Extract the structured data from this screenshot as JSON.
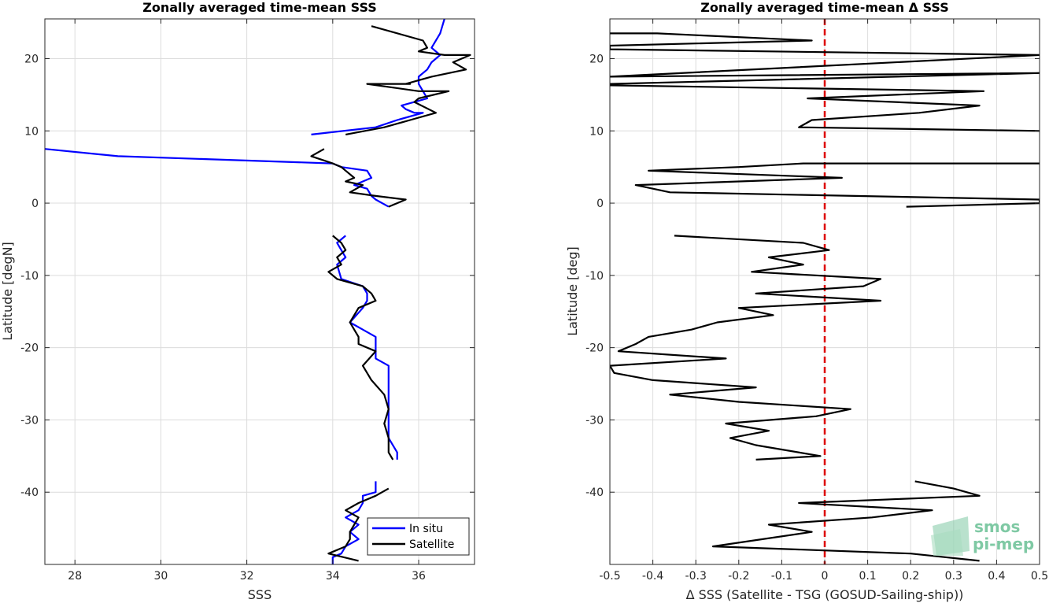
{
  "chart_data": [
    {
      "type": "line",
      "title": "Zonally averaged time-mean SSS",
      "xlabel": "SSS",
      "ylabel": "Latitude [degN]",
      "xlim": [
        27.3,
        37.3
      ],
      "ylim": [
        -50,
        25.5
      ],
      "xticks": [
        28,
        30,
        32,
        34,
        36
      ],
      "yticks": [
        20,
        10,
        0,
        -10,
        -20,
        -30,
        -40
      ],
      "grid": true,
      "legend": "bottom-right",
      "series": [
        {
          "name": "In situ",
          "color": "#0000ff",
          "segments": [
            [
              [
                36.6,
                25.5
              ],
              [
                36.5,
                23.5
              ],
              [
                36.3,
                21.5
              ],
              [
                36.5,
                20.5
              ],
              [
                36.3,
                19.5
              ],
              [
                36.2,
                18.5
              ],
              [
                36.0,
                17.5
              ],
              [
                36.0,
                16.5
              ],
              [
                36.1,
                15.5
              ],
              [
                36.2,
                14.5
              ],
              [
                35.6,
                13.5
              ],
              [
                35.7,
                13.0
              ],
              [
                35.9,
                12.5
              ],
              [
                36.1,
                12.5
              ],
              [
                35.5,
                11.5
              ],
              [
                35.0,
                10.5
              ],
              [
                33.5,
                9.5
              ]
            ],
            [
              [
                27.3,
                7.5
              ],
              [
                29.0,
                6.5
              ],
              [
                34.0,
                5.5
              ],
              [
                34.2,
                5.0
              ],
              [
                34.8,
                4.5
              ],
              [
                34.9,
                3.5
              ],
              [
                34.5,
                2.5
              ],
              [
                34.8,
                2.0
              ],
              [
                34.9,
                1.0
              ],
              [
                35.0,
                0.5
              ],
              [
                35.3,
                -0.5
              ]
            ],
            [
              [
                34.3,
                -4.5
              ],
              [
                34.1,
                -5.5
              ],
              [
                34.2,
                -6.5
              ],
              [
                34.3,
                -7.5
              ],
              [
                34.1,
                -8.5
              ],
              [
                34.2,
                -10.5
              ],
              [
                34.7,
                -11.5
              ],
              [
                34.8,
                -12.5
              ],
              [
                34.8,
                -13.5
              ],
              [
                34.7,
                -14.5
              ],
              [
                34.4,
                -16.5
              ],
              [
                34.7,
                -17.5
              ],
              [
                35.0,
                -18.5
              ],
              [
                35.0,
                -19.5
              ],
              [
                35.0,
                -20.5
              ],
              [
                35.0,
                -21.5
              ],
              [
                35.3,
                -22.5
              ],
              [
                35.3,
                -24.5
              ],
              [
                35.3,
                -26.5
              ],
              [
                35.3,
                -28.5
              ],
              [
                35.3,
                -30.5
              ],
              [
                35.3,
                -32.5
              ],
              [
                35.5,
                -34.5
              ],
              [
                35.5,
                -35.5
              ]
            ],
            [
              [
                35.0,
                -38.5
              ],
              [
                35.0,
                -40.0
              ],
              [
                34.7,
                -40.5
              ],
              [
                34.7,
                -41.5
              ],
              [
                34.6,
                -42.5
              ],
              [
                34.3,
                -43.5
              ],
              [
                34.6,
                -44.5
              ],
              [
                34.4,
                -45.5
              ],
              [
                34.6,
                -46.5
              ],
              [
                34.3,
                -47.5
              ],
              [
                34.2,
                -48.5
              ],
              [
                34.0,
                -49.0
              ],
              [
                34.0,
                -50.0
              ]
            ]
          ]
        },
        {
          "name": "Satellite",
          "color": "#000000",
          "segments": [
            [
              [
                34.9,
                24.5
              ],
              [
                36.1,
                22.5
              ],
              [
                36.2,
                21.5
              ],
              [
                36.0,
                21.0
              ],
              [
                36.6,
                20.5
              ],
              [
                37.2,
                20.5
              ],
              [
                36.8,
                19.5
              ],
              [
                37.1,
                18.5
              ],
              [
                36.3,
                17.5
              ],
              [
                35.7,
                16.5
              ],
              [
                35.8,
                16.5
              ],
              [
                34.8,
                16.5
              ],
              [
                36.0,
                15.5
              ],
              [
                36.7,
                15.5
              ],
              [
                36.0,
                14.5
              ],
              [
                35.9,
                14.0
              ],
              [
                36.4,
                12.5
              ],
              [
                35.8,
                11.5
              ],
              [
                35.2,
                10.5
              ],
              [
                34.3,
                9.5
              ]
            ],
            [
              [
                33.8,
                7.5
              ],
              [
                33.5,
                6.5
              ],
              [
                34.0,
                5.5
              ],
              [
                34.2,
                5.0
              ],
              [
                34.3,
                4.5
              ],
              [
                34.5,
                3.5
              ],
              [
                34.3,
                3.0
              ],
              [
                34.7,
                2.5
              ],
              [
                34.4,
                1.5
              ],
              [
                35.0,
                1.0
              ],
              [
                35.7,
                0.5
              ],
              [
                35.3,
                -0.5
              ]
            ],
            [
              [
                34.0,
                -4.5
              ],
              [
                34.2,
                -5.5
              ],
              [
                34.3,
                -6.5
              ],
              [
                34.1,
                -7.5
              ],
              [
                34.2,
                -8.5
              ],
              [
                33.9,
                -9.5
              ],
              [
                34.1,
                -10.5
              ],
              [
                34.7,
                -11.5
              ],
              [
                34.9,
                -12.5
              ],
              [
                35.0,
                -13.5
              ],
              [
                34.6,
                -14.5
              ],
              [
                34.4,
                -16.5
              ],
              [
                34.5,
                -17.5
              ],
              [
                34.6,
                -18.5
              ],
              [
                34.6,
                -19.5
              ],
              [
                35.0,
                -20.5
              ],
              [
                34.7,
                -22.5
              ],
              [
                34.9,
                -24.5
              ],
              [
                35.2,
                -26.5
              ],
              [
                35.3,
                -28.5
              ],
              [
                35.2,
                -30.5
              ],
              [
                35.3,
                -32.5
              ],
              [
                35.3,
                -34.5
              ],
              [
                35.4,
                -35.5
              ]
            ],
            [
              [
                35.3,
                -39.5
              ],
              [
                35.0,
                -40.5
              ],
              [
                34.6,
                -41.5
              ],
              [
                34.3,
                -42.5
              ],
              [
                34.6,
                -43.5
              ],
              [
                34.5,
                -44.5
              ],
              [
                34.4,
                -45.5
              ],
              [
                34.4,
                -46.5
              ],
              [
                34.3,
                -47.5
              ],
              [
                33.9,
                -48.5
              ],
              [
                34.6,
                -49.5
              ]
            ]
          ]
        }
      ]
    },
    {
      "type": "line",
      "title": "Zonally averaged time-mean Δ SSS",
      "xlabel": "Δ SSS (Satellite - TSG (GOSUD-Sailing-ship))",
      "ylabel": "Latitude [deg]",
      "xlim": [
        -0.5,
        0.5
      ],
      "ylim": [
        -50,
        25.5
      ],
      "xticks": [
        -0.5,
        -0.4,
        -0.3,
        -0.2,
        -0.1,
        0,
        0.1,
        0.2,
        0.3,
        0.4,
        0.5
      ],
      "yticks": [
        20,
        10,
        0,
        -10,
        -20,
        -30,
        -40
      ],
      "grid": true,
      "reference_line": {
        "x": 0,
        "color": "#dd0000",
        "style": "dashed"
      },
      "series": [
        {
          "name": "",
          "color": "#000000",
          "segments": [
            [
              [
                -0.5,
                23.5
              ],
              [
                -0.39,
                23.5
              ],
              [
                -0.03,
                22.5
              ],
              [
                -0.5,
                21.8
              ],
              [
                -0.5,
                21.3
              ],
              [
                0.5,
                20.5
              ],
              [
                -0.5,
                17.5
              ],
              [
                0.5,
                18.0
              ],
              [
                -0.5,
                16.5
              ],
              [
                -0.5,
                16.3
              ],
              [
                0.37,
                15.5
              ],
              [
                -0.04,
                14.5
              ],
              [
                0.36,
                13.5
              ],
              [
                0.22,
                12.5
              ],
              [
                -0.03,
                11.5
              ],
              [
                -0.06,
                10.5
              ],
              [
                0.5,
                10.0
              ]
            ],
            [
              [
                0.5,
                5.5
              ],
              [
                -0.05,
                5.5
              ],
              [
                -0.2,
                5.0
              ],
              [
                -0.41,
                4.5
              ],
              [
                0.04,
                3.5
              ],
              [
                -0.44,
                2.5
              ],
              [
                -0.36,
                1.5
              ],
              [
                0.5,
                0.5
              ],
              [
                0.5,
                0.0
              ],
              [
                0.19,
                -0.5
              ]
            ],
            [
              [
                -0.35,
                -4.5
              ],
              [
                -0.05,
                -5.5
              ],
              [
                0.01,
                -6.5
              ],
              [
                -0.13,
                -7.5
              ],
              [
                -0.05,
                -8.5
              ],
              [
                -0.17,
                -9.5
              ],
              [
                0.13,
                -10.5
              ],
              [
                0.09,
                -11.5
              ],
              [
                -0.16,
                -12.5
              ],
              [
                0.13,
                -13.5
              ],
              [
                -0.2,
                -14.5
              ],
              [
                -0.12,
                -15.5
              ],
              [
                -0.25,
                -16.5
              ],
              [
                -0.31,
                -17.5
              ],
              [
                -0.41,
                -18.5
              ],
              [
                -0.44,
                -19.5
              ],
              [
                -0.48,
                -20.5
              ],
              [
                -0.23,
                -21.5
              ],
              [
                -0.5,
                -22.5
              ],
              [
                -0.49,
                -23.5
              ],
              [
                -0.4,
                -24.5
              ],
              [
                -0.16,
                -25.5
              ],
              [
                -0.36,
                -26.5
              ],
              [
                -0.2,
                -27.5
              ],
              [
                0.06,
                -28.5
              ],
              [
                -0.02,
                -29.5
              ],
              [
                -0.23,
                -30.5
              ],
              [
                -0.13,
                -31.5
              ],
              [
                -0.22,
                -32.5
              ],
              [
                -0.16,
                -33.5
              ],
              [
                -0.01,
                -35.0
              ],
              [
                -0.16,
                -35.5
              ]
            ],
            [
              [
                0.21,
                -38.5
              ],
              [
                0.3,
                -39.5
              ],
              [
                0.36,
                -40.5
              ],
              [
                -0.06,
                -41.5
              ],
              [
                0.25,
                -42.5
              ],
              [
                0.11,
                -43.5
              ],
              [
                -0.13,
                -44.5
              ],
              [
                -0.03,
                -45.5
              ],
              [
                -0.26,
                -47.5
              ],
              [
                0.2,
                -48.5
              ],
              [
                0.36,
                -49.5
              ]
            ]
          ]
        }
      ]
    }
  ],
  "legend_items": [
    "In situ",
    "Satellite"
  ],
  "logo": {
    "line1": "smos",
    "line2": "pi-mep",
    "color": "#7fc9a4"
  }
}
